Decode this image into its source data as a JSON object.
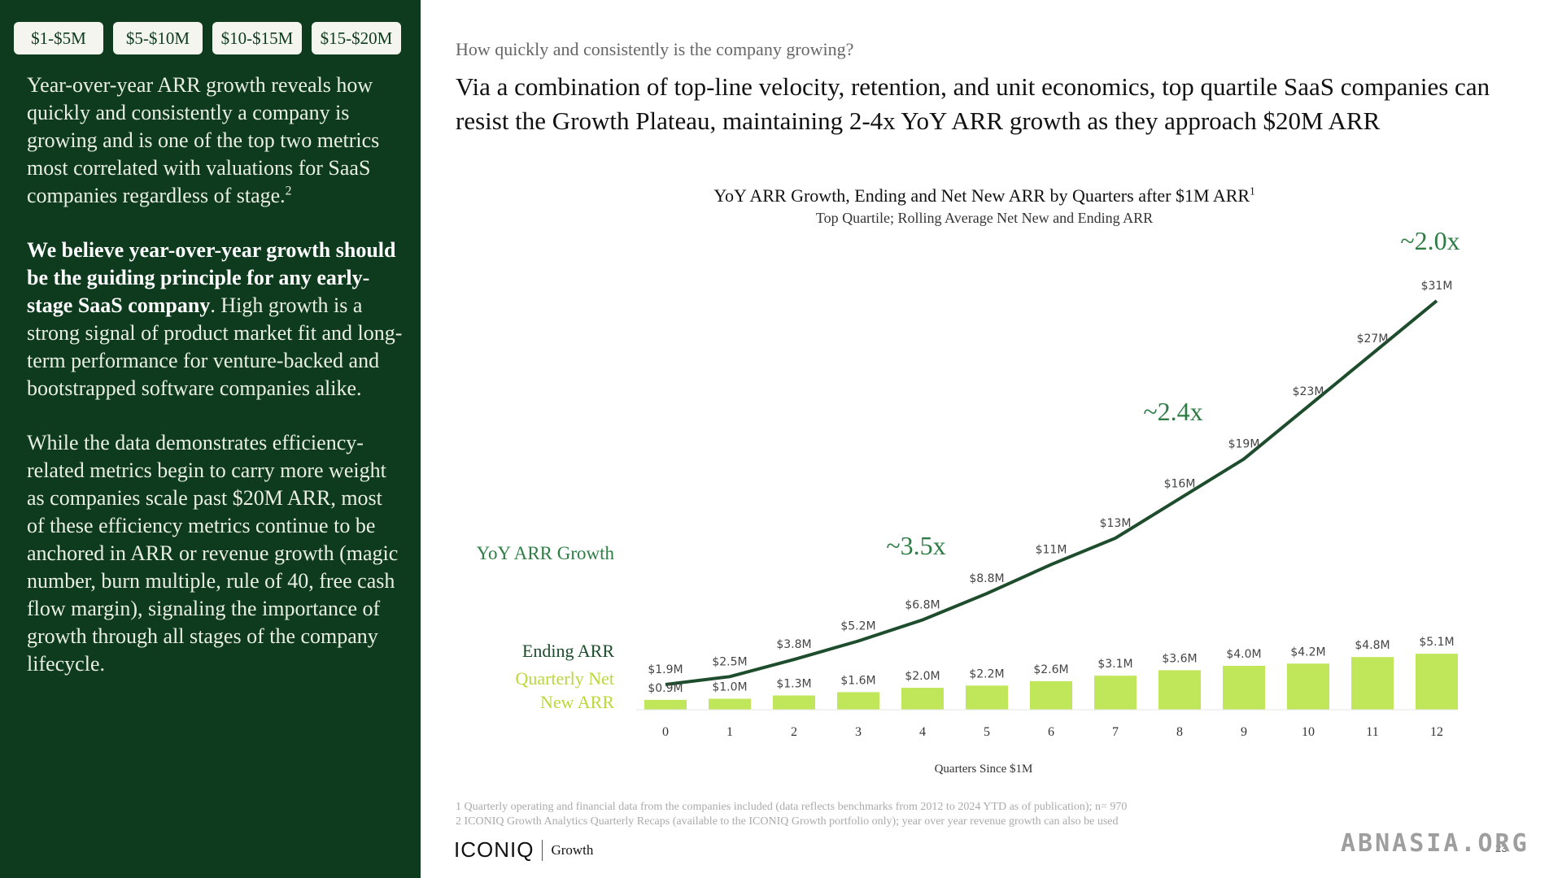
{
  "tabs": [
    "$1-$5M",
    "$5-$10M",
    "$10-$15M",
    "$15-$20M"
  ],
  "sidebar": {
    "p1": "Year-over-year ARR growth reveals how quickly and consistently a company is growing and is one of the top two metrics most correlated with valuations for SaaS companies regardless of stage.",
    "p1_sup": "2",
    "p2_bold": "We believe year-over-year growth should be the guiding principle for any early-stage SaaS company",
    "p2_rest": ". High growth is a strong signal of product market fit and long-term performance for venture-backed and bootstrapped software companies alike.",
    "p3": "While the data demonstrates efficiency-related metrics begin to carry more weight as companies scale past $20M ARR, most of these efficiency metrics continue to be anchored in ARR or revenue growth (magic number, burn multiple, rule of 40, free cash flow margin), signaling the importance of growth through all stages of the company lifecycle."
  },
  "question": "How quickly and consistently is the company growing?",
  "headline": "Via a combination of top-line velocity, retention, and unit economics, top quartile SaaS companies can resist the Growth Plateau, maintaining 2-4x YoY ARR growth as they approach $20M ARR",
  "legend": {
    "yoy": "YoY ARR Growth",
    "ending": "Ending ARR",
    "net_new": "Quarterly Net New ARR"
  },
  "footnotes": [
    "1 Quarterly operating and financial data from the companies included (data reflects benchmarks from 2012 to 2024 YTD as of publication); n= 970",
    "2 ICONIQ Growth Analytics Quarterly Recaps (available to the ICONIQ Growth portfolio only); year over year revenue growth can also be used"
  ],
  "logo": {
    "main": "ICONIQ",
    "sub": "Growth"
  },
  "page_number": "23",
  "watermark": "ABNASIA.ORG",
  "colors": {
    "sidebar": "#0e3b1e",
    "line": "#1d4d2c",
    "bar": "#c0e65a",
    "growth_label": "#2e7d45",
    "legend_net_new": "#b9d83a"
  },
  "chart_data": {
    "type": "bar",
    "title": "YoY ARR Growth, Ending and Net New ARR by Quarters after $1M ARR",
    "title_sup": "1",
    "subtitle": "Top Quartile; Rolling Average Net New and Ending ARR",
    "xlabel": "Quarters Since $1M",
    "categories": [
      "0",
      "1",
      "2",
      "3",
      "4",
      "5",
      "6",
      "7",
      "8",
      "9",
      "10",
      "11",
      "12"
    ],
    "series": [
      {
        "name": "Ending ARR",
        "type": "line",
        "values": [
          1.9,
          2.5,
          3.8,
          5.2,
          6.8,
          8.8,
          11,
          13,
          16,
          19,
          23,
          27,
          31
        ],
        "labels": [
          "$1.9M",
          "$2.5M",
          "$3.8M",
          "$5.2M",
          "$6.8M",
          "$8.8M",
          "$11M",
          "$13M",
          "$16M",
          "$19M",
          "$23M",
          "$27M",
          "$31M"
        ]
      },
      {
        "name": "Quarterly Net New ARR",
        "type": "bar",
        "values": [
          0.9,
          1.0,
          1.3,
          1.6,
          2.0,
          2.2,
          2.6,
          3.1,
          3.6,
          4.0,
          4.2,
          4.8,
          5.1
        ],
        "labels": [
          "$0.9M",
          "$1.0M",
          "$1.3M",
          "$1.6M",
          "$2.0M",
          "$2.2M",
          "$2.6M",
          "$3.1M",
          "$3.6M",
          "$4.0M",
          "$4.2M",
          "$4.8M",
          "$5.1M"
        ]
      }
    ],
    "growth_annotations": [
      {
        "quarter": 4,
        "label": "~3.5x"
      },
      {
        "quarter": 8,
        "label": "~2.4x"
      },
      {
        "quarter": 12,
        "label": "~2.0x"
      }
    ]
  }
}
